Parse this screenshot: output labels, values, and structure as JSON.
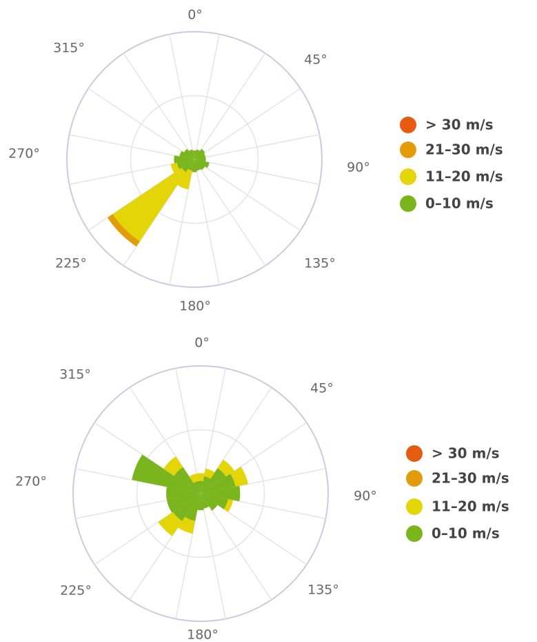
{
  "chart_data": [
    {
      "type": "windrose",
      "direction_labels": [
        "0°",
        "45°",
        "90°",
        "135°",
        "180°",
        "225°",
        "270°",
        "315°"
      ],
      "directions": [
        0,
        22.5,
        45,
        67.5,
        90,
        112.5,
        135,
        157.5,
        180,
        202.5,
        225,
        247.5,
        270,
        292.5,
        315,
        337.5
      ],
      "radial_max": 100,
      "inner_ring": 50,
      "legend": [
        "> 30 m/s",
        "21–30 m/s",
        "11–20 m/s",
        "0–10 m/s"
      ],
      "series": [
        {
          "name": "0–10 m/s",
          "color": "#7ab51d",
          "values": [
            7,
            8,
            10,
            9,
            9,
            12,
            10,
            9,
            10,
            9,
            12,
            14,
            16,
            12,
            10,
            8
          ]
        },
        {
          "name": "11–20 m/s",
          "color": "#e4d509",
          "values": [
            0,
            0,
            0,
            0,
            0,
            0,
            0,
            0,
            0,
            15,
            65,
            5,
            0,
            0,
            0,
            0
          ]
        },
        {
          "name": "21–30 m/s",
          "color": "#e39c09",
          "values": [
            0,
            0,
            0,
            0,
            0,
            0,
            0,
            0,
            0,
            0,
            5,
            0,
            0,
            0,
            0,
            0
          ]
        },
        {
          "name": "> 30 m/s",
          "color": "#e65c0e",
          "values": [
            0,
            0,
            0,
            0,
            0,
            0,
            0,
            0,
            0,
            0,
            0,
            0,
            0,
            0,
            0,
            0
          ]
        }
      ]
    },
    {
      "type": "windrose",
      "direction_labels": [
        "0°",
        "45°",
        "90°",
        "135°",
        "180°",
        "225°",
        "270°",
        "315°"
      ],
      "directions": [
        0,
        22.5,
        45,
        67.5,
        90,
        112.5,
        135,
        157.5,
        180,
        202.5,
        225,
        247.5,
        270,
        292.5,
        315,
        337.5
      ],
      "radial_max": 100,
      "inner_ring": 50,
      "legend": [
        "> 30 m/s",
        "21–30 m/s",
        "11–20 m/s",
        "0–10 m/s"
      ],
      "series": [
        {
          "name": "0–10 m/s",
          "color": "#7ab51d",
          "values": [
            10,
            14,
            24,
            28,
            31,
            22,
            16,
            12,
            13,
            22,
            26,
            27,
            27,
            55,
            25,
            10
          ]
        },
        {
          "name": "11–20 m/s",
          "color": "#e4d509",
          "values": [
            6,
            6,
            8,
            10,
            0,
            4,
            0,
            0,
            0,
            10,
            14,
            0,
            0,
            0,
            10,
            6
          ]
        },
        {
          "name": "21–30 m/s",
          "color": "#e39c09",
          "values": [
            0,
            0,
            0,
            0,
            0,
            0,
            0,
            0,
            0,
            0,
            0,
            0,
            0,
            0,
            0,
            0
          ]
        },
        {
          "name": "> 30 m/s",
          "color": "#e65c0e",
          "values": [
            0,
            0,
            0,
            0,
            0,
            0,
            0,
            0,
            0,
            0,
            0,
            0,
            0,
            0,
            0,
            0
          ]
        }
      ]
    }
  ]
}
